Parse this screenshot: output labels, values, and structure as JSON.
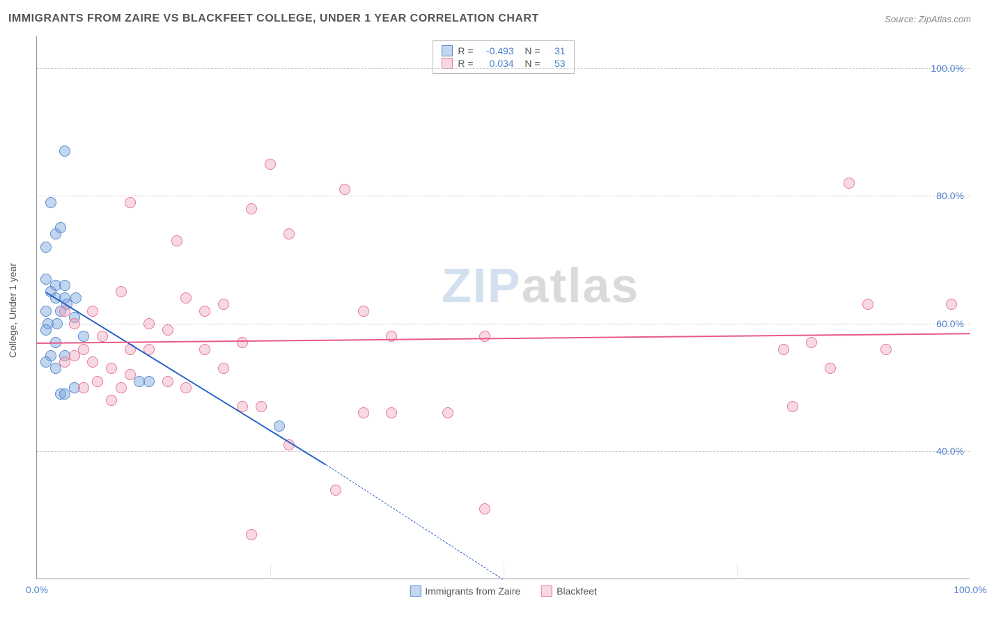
{
  "header": {
    "title": "IMMIGRANTS FROM ZAIRE VS BLACKFEET COLLEGE, UNDER 1 YEAR CORRELATION CHART",
    "source_label": "Source:",
    "source_name": "ZipAtlas.com"
  },
  "chart": {
    "type": "scatter",
    "ylabel": "College, Under 1 year",
    "xlim": [
      0,
      100
    ],
    "ylim": [
      20,
      105
    ],
    "yticks": [
      40,
      60,
      80,
      100
    ],
    "ytick_labels": [
      "40.0%",
      "60.0%",
      "80.0%",
      "100.0%"
    ],
    "xticks": [
      0,
      100
    ],
    "xtick_labels": [
      "0.0%",
      "100.0%"
    ],
    "background_color": "#ffffff",
    "grid_color": "#cccccc",
    "marker_size": 16,
    "marker_opacity": 0.55,
    "watermark": {
      "part1": "ZIP",
      "part2": "atlas"
    },
    "series": [
      {
        "name": "Immigrants from Zaire",
        "color_fill": "rgba(120,165,220,0.45)",
        "color_stroke": "#5a8cd0",
        "trend_color": "#2a62c8",
        "stats": {
          "R": "-0.493",
          "N": "31"
        },
        "trend": {
          "x1": 1,
          "y1": 65,
          "x2": 31,
          "y2": 38,
          "dash_to_x": 50,
          "dash_to_y": 20
        },
        "points": [
          [
            3,
            87
          ],
          [
            1.5,
            79
          ],
          [
            2,
            74
          ],
          [
            2.5,
            75
          ],
          [
            1,
            72
          ],
          [
            1,
            67
          ],
          [
            2,
            66
          ],
          [
            3,
            66
          ],
          [
            1.5,
            65
          ],
          [
            3,
            64
          ],
          [
            2,
            64
          ],
          [
            1,
            62
          ],
          [
            2.5,
            62
          ],
          [
            1.2,
            60
          ],
          [
            2.2,
            60
          ],
          [
            1,
            59
          ],
          [
            2,
            57
          ],
          [
            1.5,
            55
          ],
          [
            3,
            55
          ],
          [
            2,
            53
          ],
          [
            4,
            61
          ],
          [
            5,
            58
          ],
          [
            1,
            54
          ],
          [
            4,
            50
          ],
          [
            2.5,
            49
          ],
          [
            11,
            51
          ],
          [
            12,
            51
          ],
          [
            3,
            49
          ],
          [
            26,
            44
          ],
          [
            3.2,
            63
          ],
          [
            4.2,
            64
          ]
        ]
      },
      {
        "name": "Blackfeet",
        "color_fill": "rgba(240,160,180,0.40)",
        "color_stroke": "#e67a9a",
        "trend_color": "#e85a88",
        "stats": {
          "R": "0.034",
          "N": "53"
        },
        "trend": {
          "x1": 0,
          "y1": 57,
          "x2": 100,
          "y2": 58.5
        },
        "points": [
          [
            10,
            79
          ],
          [
            25,
            85
          ],
          [
            33,
            81
          ],
          [
            23,
            78
          ],
          [
            27,
            74
          ],
          [
            15,
            73
          ],
          [
            9,
            65
          ],
          [
            16,
            64
          ],
          [
            18,
            62
          ],
          [
            20,
            63
          ],
          [
            12,
            60
          ],
          [
            14,
            59
          ],
          [
            22,
            57
          ],
          [
            35,
            62
          ],
          [
            38,
            58
          ],
          [
            48,
            58
          ],
          [
            10,
            56
          ],
          [
            4,
            55
          ],
          [
            6,
            54
          ],
          [
            8,
            53
          ],
          [
            6.5,
            51
          ],
          [
            9,
            50
          ],
          [
            14,
            51
          ],
          [
            16,
            50
          ],
          [
            22,
            47
          ],
          [
            24,
            47
          ],
          [
            27,
            41
          ],
          [
            35,
            46
          ],
          [
            38,
            46
          ],
          [
            44,
            46
          ],
          [
            32,
            34
          ],
          [
            23,
            27
          ],
          [
            48,
            31
          ],
          [
            18,
            56
          ],
          [
            20,
            53
          ],
          [
            8,
            48
          ],
          [
            5,
            56
          ],
          [
            7,
            58
          ],
          [
            87,
            82
          ],
          [
            89,
            63
          ],
          [
            98,
            63
          ],
          [
            83,
            57
          ],
          [
            80,
            56
          ],
          [
            85,
            53
          ],
          [
            91,
            56
          ],
          [
            81,
            47
          ],
          [
            3,
            62
          ],
          [
            6,
            62
          ],
          [
            4,
            60
          ],
          [
            10,
            52
          ],
          [
            12,
            56
          ],
          [
            5,
            50
          ],
          [
            3,
            54
          ]
        ]
      }
    ],
    "legend_bottom": [
      {
        "label": "Immigrants from Zaire",
        "fill": "rgba(120,165,220,0.45)",
        "stroke": "#5a8cd0"
      },
      {
        "label": "Blackfeet",
        "fill": "rgba(240,160,180,0.40)",
        "stroke": "#e67a9a"
      }
    ]
  }
}
